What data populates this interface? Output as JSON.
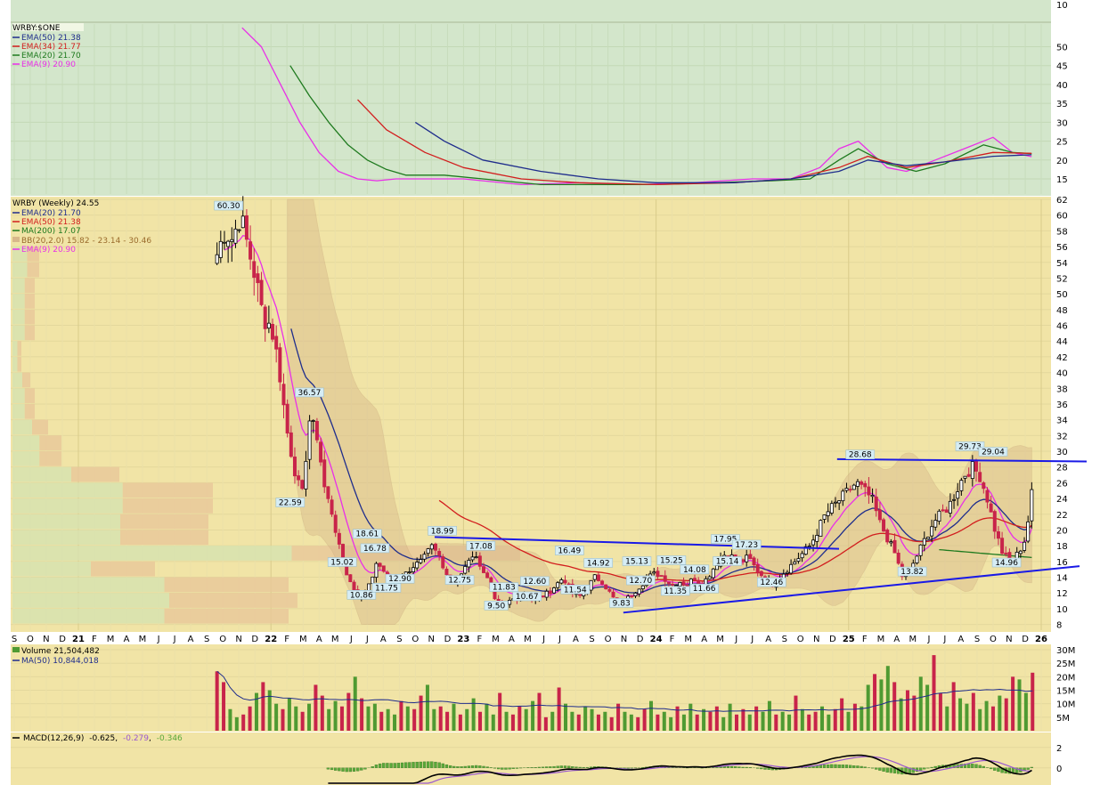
{
  "colors": {
    "panel_bg": "#f1e4a6",
    "panel_bg_top": "#cfe5c8",
    "grid": "#c9d6b4",
    "ema20": "#1f2d8c",
    "ema50": "#d21e1e",
    "ema34": "#d21e1e",
    "ma200": "#1e7a1e",
    "ema9": "#e92fe8",
    "bb_fill": "#d8b88b",
    "up": "#4f9a32",
    "down": "#c8244a",
    "trend": "#1a1ae6",
    "macd": "#000000",
    "signal": "#9b59d0",
    "hist": "#5aa83a"
  },
  "chart_data": [
    {
      "type": "line",
      "panel": "ratio",
      "legend": {
        "title": "WRBY:$ONE",
        "entries": [
          "EMA(50) 21.38",
          "EMA(34) 21.77",
          "EMA(20) 21.70",
          "EMA(9) 20.90"
        ]
      },
      "y_ticks": [
        "10",
        "50",
        "45",
        "40",
        "35",
        "30",
        "25",
        "20",
        "15"
      ],
      "ylim": [
        11,
        56
      ],
      "series": [
        {
          "name": "EMA(9)",
          "color_key": "ema9",
          "x": [
            2021.85,
            2021.95,
            2022.05,
            2022.15,
            2022.25,
            2022.35,
            2022.45,
            2022.55,
            2022.65,
            2022.8,
            2023.0,
            2023.3,
            2023.6,
            2023.9,
            2024.2,
            2024.5,
            2024.7,
            2024.85,
            2024.95,
            2025.05,
            2025.2,
            2025.3,
            2025.45,
            2025.6,
            2025.75,
            2025.85,
            2025.95
          ],
          "values": [
            55,
            50,
            40,
            30,
            22,
            17,
            15,
            14.5,
            15,
            15,
            15,
            13.5,
            14,
            13.5,
            14,
            15,
            15,
            18,
            23,
            25,
            18,
            17,
            20,
            23,
            26,
            22,
            20.9
          ]
        },
        {
          "name": "EMA(20)",
          "color_key": "ma200",
          "x": [
            2022.1,
            2022.2,
            2022.3,
            2022.4,
            2022.5,
            2022.6,
            2022.7,
            2022.9,
            2023.1,
            2023.4,
            2023.7,
            2024.0,
            2024.3,
            2024.6,
            2024.8,
            2024.95,
            2025.05,
            2025.2,
            2025.35,
            2025.5,
            2025.7,
            2025.85,
            2025.95
          ],
          "values": [
            45,
            37,
            30,
            24,
            20,
            17.5,
            16,
            16,
            15,
            13.5,
            13.5,
            13.5,
            14,
            14.5,
            15,
            20,
            23,
            19,
            17,
            19,
            24,
            22,
            21.7
          ]
        },
        {
          "name": "EMA(34)",
          "color_key": "ema34",
          "x": [
            2022.45,
            2022.6,
            2022.8,
            2023.0,
            2023.3,
            2023.6,
            2024.0,
            2024.4,
            2024.7,
            2024.95,
            2025.1,
            2025.3,
            2025.5,
            2025.75,
            2025.95
          ],
          "values": [
            36,
            28,
            22,
            18,
            15,
            14,
            13.5,
            14,
            15,
            18,
            21,
            18,
            19.5,
            22,
            21.77
          ]
        },
        {
          "name": "EMA(50)",
          "color_key": "ema20",
          "x": [
            2022.75,
            2022.9,
            2023.1,
            2023.4,
            2023.7,
            2024.0,
            2024.4,
            2024.7,
            2024.95,
            2025.1,
            2025.3,
            2025.5,
            2025.75,
            2025.95
          ],
          "values": [
            30,
            25,
            20,
            17,
            15,
            14,
            14,
            15,
            17,
            20,
            18.5,
            19.5,
            21,
            21.38
          ]
        }
      ]
    },
    {
      "type": "candlestick",
      "panel": "price",
      "legend": {
        "title": "WRBY (Weekly) 24.55",
        "entries": [
          "EMA(20) 21.70",
          "EMA(50) 21.38",
          "MA(200) 17.07",
          "BB(20,2.0) 15.82 - 23.14 - 30.46",
          "EMA(9) 20.90"
        ]
      },
      "y_ticks": [
        "62",
        "60",
        "58",
        "56",
        "54",
        "52",
        "50",
        "48",
        "46",
        "44",
        "42",
        "40",
        "38",
        "36",
        "34",
        "32",
        "30",
        "28",
        "26",
        "24",
        "22",
        "20",
        "18",
        "16",
        "14",
        "12",
        "10",
        "8"
      ],
      "ylim": [
        7.5,
        62
      ],
      "x_ticks": [
        "S",
        "O",
        "N",
        "D",
        "21",
        "F",
        "M",
        "A",
        "M",
        "J",
        "J",
        "A",
        "S",
        "O",
        "N",
        "D",
        "22",
        "F",
        "M",
        "A",
        "M",
        "J",
        "J",
        "A",
        "S",
        "O",
        "N",
        "D",
        "23",
        "F",
        "M",
        "A",
        "M",
        "J",
        "J",
        "A",
        "S",
        "O",
        "N",
        "D",
        "24",
        "F",
        "M",
        "A",
        "M",
        "J",
        "J",
        "A",
        "S",
        "O",
        "N",
        "D",
        "25",
        "F",
        "M",
        "A",
        "M",
        "J",
        "J",
        "A",
        "S",
        "O",
        "N",
        "D",
        "26"
      ],
      "x_tick_values": [
        2020.667,
        2020.75,
        2020.833,
        2020.917,
        2021.0,
        2021.083,
        2021.167,
        2021.25,
        2021.333,
        2021.417,
        2021.5,
        2021.583,
        2021.667,
        2021.75,
        2021.833,
        2021.917,
        2022.0,
        2022.083,
        2022.167,
        2022.25,
        2022.333,
        2022.417,
        2022.5,
        2022.583,
        2022.667,
        2022.75,
        2022.833,
        2022.917,
        2023.0,
        2023.083,
        2023.167,
        2023.25,
        2023.333,
        2023.417,
        2023.5,
        2023.583,
        2023.667,
        2023.75,
        2023.833,
        2023.917,
        2024.0,
        2024.083,
        2024.167,
        2024.25,
        2024.333,
        2024.417,
        2024.5,
        2024.583,
        2024.667,
        2024.75,
        2024.833,
        2024.917,
        2025.0,
        2025.083,
        2025.167,
        2025.25,
        2025.333,
        2025.417,
        2025.5,
        2025.583,
        2025.667,
        2025.75,
        2025.833,
        2025.917,
        2026.0
      ],
      "peak_labels": [
        {
          "x": 2021.78,
          "y": 60.3,
          "text": "60.30"
        },
        {
          "x": 2022.2,
          "y": 36.57,
          "text": "36.57"
        },
        {
          "x": 2022.1,
          "y": 22.59,
          "text": "22.59"
        },
        {
          "x": 2022.5,
          "y": 18.61,
          "text": "18.61"
        },
        {
          "x": 2022.54,
          "y": 16.78,
          "text": "16.78"
        },
        {
          "x": 2022.37,
          "y": 15.02,
          "text": "15.02"
        },
        {
          "x": 2022.47,
          "y": 10.86,
          "text": "10.86"
        },
        {
          "x": 2022.6,
          "y": 11.75,
          "text": "11.75"
        },
        {
          "x": 2022.67,
          "y": 12.9,
          "text": "12.90"
        },
        {
          "x": 2022.89,
          "y": 18.99,
          "text": "18.99"
        },
        {
          "x": 2022.98,
          "y": 12.75,
          "text": "12.75"
        },
        {
          "x": 2023.09,
          "y": 17.08,
          "text": "17.08"
        },
        {
          "x": 2023.17,
          "y": 9.5,
          "text": "9.50"
        },
        {
          "x": 2023.21,
          "y": 11.83,
          "text": "11.83"
        },
        {
          "x": 2023.37,
          "y": 12.6,
          "text": "12.60"
        },
        {
          "x": 2023.33,
          "y": 10.67,
          "text": "10.67"
        },
        {
          "x": 2023.55,
          "y": 16.49,
          "text": "16.49"
        },
        {
          "x": 2023.58,
          "y": 11.54,
          "text": "11.54"
        },
        {
          "x": 2023.7,
          "y": 14.92,
          "text": "14.92"
        },
        {
          "x": 2023.82,
          "y": 9.83,
          "text": "9.83"
        },
        {
          "x": 2023.92,
          "y": 12.7,
          "text": "12.70"
        },
        {
          "x": 2023.9,
          "y": 15.13,
          "text": "15.13"
        },
        {
          "x": 2024.08,
          "y": 15.25,
          "text": "15.25"
        },
        {
          "x": 2024.1,
          "y": 11.35,
          "text": "11.35"
        },
        {
          "x": 2024.2,
          "y": 14.08,
          "text": "14.08"
        },
        {
          "x": 2024.25,
          "y": 11.66,
          "text": "11.66"
        },
        {
          "x": 2024.36,
          "y": 17.95,
          "text": "17.95"
        },
        {
          "x": 2024.37,
          "y": 15.14,
          "text": "15.14"
        },
        {
          "x": 2024.47,
          "y": 17.23,
          "text": "17.23"
        },
        {
          "x": 2024.6,
          "y": 12.46,
          "text": "12.46"
        },
        {
          "x": 2025.06,
          "y": 28.68,
          "text": "28.68"
        },
        {
          "x": 2025.33,
          "y": 13.82,
          "text": "13.82"
        },
        {
          "x": 2025.63,
          "y": 29.73,
          "text": "29.73"
        },
        {
          "x": 2025.75,
          "y": 29.04,
          "text": "29.04"
        },
        {
          "x": 2025.82,
          "y": 14.96,
          "text": "14.96"
        }
      ],
      "price_path": {
        "x": [
          2021.72,
          2021.76,
          2021.8,
          2021.84,
          2021.88,
          2021.92,
          2021.96,
          2022.0,
          2022.04,
          2022.08,
          2022.12,
          2022.16,
          2022.2,
          2022.24,
          2022.28,
          2022.32,
          2022.36,
          2022.4,
          2022.44,
          2022.48,
          2022.52,
          2022.56,
          2022.6,
          2022.64,
          2022.68,
          2022.72,
          2022.76,
          2022.8,
          2022.84,
          2022.88,
          2022.92,
          2022.96,
          2023.0,
          2023.04,
          2023.08,
          2023.12,
          2023.16,
          2023.2,
          2023.24,
          2023.28,
          2023.32,
          2023.36,
          2023.4,
          2023.44,
          2023.48,
          2023.52,
          2023.56,
          2023.6,
          2023.64,
          2023.68,
          2023.72,
          2023.76,
          2023.8,
          2023.84,
          2023.88,
          2023.92,
          2023.96,
          2024.0,
          2024.04,
          2024.08,
          2024.12,
          2024.16,
          2024.2,
          2024.24,
          2024.28,
          2024.32,
          2024.36,
          2024.4,
          2024.44,
          2024.48,
          2024.52,
          2024.56,
          2024.6,
          2024.64,
          2024.68,
          2024.72,
          2024.76,
          2024.8,
          2024.84,
          2024.88,
          2024.92,
          2024.96,
          2025.0,
          2025.04,
          2025.08,
          2025.12,
          2025.16,
          2025.2,
          2025.24,
          2025.28,
          2025.32,
          2025.36,
          2025.4,
          2025.44,
          2025.48,
          2025.52,
          2025.56,
          2025.6,
          2025.64,
          2025.68,
          2025.72,
          2025.76,
          2025.8,
          2025.84,
          2025.88,
          2025.92,
          2025.95
        ],
        "values": [
          55,
          58,
          57,
          60,
          56,
          52,
          47,
          46,
          41,
          33,
          28,
          24,
          34,
          32,
          25,
          22,
          17,
          14,
          12,
          11.5,
          14,
          16,
          13.5,
          13,
          14,
          15,
          16,
          17.5,
          18,
          16,
          14,
          13,
          15,
          17,
          16,
          14,
          11,
          10,
          11,
          11.5,
          12,
          11,
          11.5,
          12,
          13,
          14,
          12,
          11.5,
          12.5,
          14,
          13.5,
          12,
          10.5,
          11,
          12,
          13,
          14,
          14.5,
          14,
          13,
          13.5,
          13,
          14,
          13,
          14.5,
          16,
          17,
          16.5,
          16,
          16.5,
          15,
          14,
          13,
          14,
          15,
          16,
          17,
          18,
          20,
          22,
          23,
          24,
          25,
          26,
          25,
          24,
          21,
          19,
          17,
          14,
          15,
          17,
          19,
          21,
          22,
          23,
          25,
          27,
          28,
          27,
          24,
          20,
          17,
          16,
          17,
          19,
          24.55
        ]
      }
    },
    {
      "type": "bar",
      "panel": "volume",
      "legend": {
        "title": "Volume 21,504,482",
        "entries": [
          "MA(50) 10,844,018"
        ]
      },
      "y_ticks": [
        "30M",
        "25M",
        "20M",
        "15M",
        "10M",
        "5M"
      ],
      "ylim": [
        0,
        31
      ],
      "values_m": [
        22,
        18,
        8,
        5,
        6,
        9,
        14,
        18,
        15,
        10,
        8,
        12,
        9,
        7,
        10,
        17,
        13,
        8,
        11,
        9,
        14,
        20,
        12,
        9,
        10,
        7,
        8,
        6,
        11,
        9,
        8,
        13,
        17,
        8,
        9,
        7,
        10,
        6,
        8,
        12,
        7,
        10,
        6,
        14,
        7,
        6,
        9,
        8,
        11,
        14,
        5,
        7,
        16,
        10,
        7,
        6,
        9,
        8,
        6,
        7,
        5,
        10,
        7,
        6,
        5,
        8,
        11,
        6,
        7,
        5,
        9,
        6,
        10,
        6,
        8,
        7,
        9,
        5,
        10,
        6,
        8,
        6,
        9,
        7,
        11,
        6,
        7,
        6,
        13,
        8,
        6,
        7,
        9,
        6,
        8,
        12,
        7,
        10,
        9,
        17,
        21,
        19,
        24,
        18,
        12,
        15,
        13,
        20,
        17,
        28,
        14,
        9,
        18,
        12,
        10,
        14,
        8,
        11,
        9,
        13,
        12,
        20,
        19,
        14,
        21.5
      ]
    },
    {
      "type": "bar",
      "panel": "macd",
      "legend": {
        "title": "MACD(12,26,9)",
        "macd": "-0.625",
        "signal": "-0.279",
        "hist": "-0.346"
      },
      "y_ticks": [
        "2",
        "0"
      ],
      "ylim": [
        -1.5,
        3.2
      ]
    }
  ]
}
